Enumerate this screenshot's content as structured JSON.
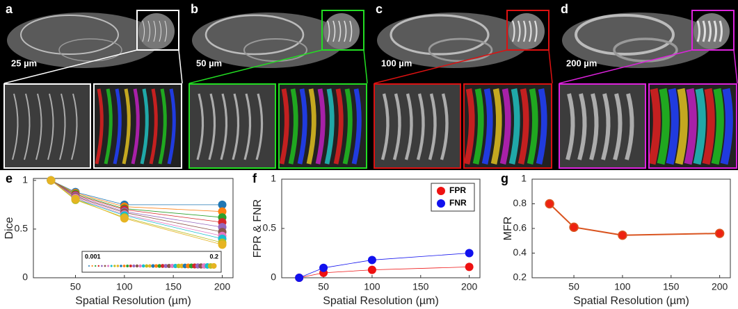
{
  "panels": [
    {
      "label": "a",
      "resolution": "25 µm",
      "border": "#ffffff"
    },
    {
      "label": "b",
      "resolution": "50 µm",
      "border": "#22dd22"
    },
    {
      "label": "c",
      "resolution": "100 µm",
      "border": "#dd1111"
    },
    {
      "label": "d",
      "resolution": "200 µm",
      "border": "#dd22dd"
    }
  ],
  "chart_data": [
    {
      "type": "line",
      "label": "e",
      "ylabel": "Dice",
      "xlabel": "Spatial Resolution (µm)",
      "x": [
        25,
        50,
        100,
        200
      ],
      "xlim": [
        7,
        211
      ],
      "xticks": [
        50,
        100,
        150,
        200
      ],
      "ylim": [
        0,
        1.02
      ],
      "yticks": [
        0,
        0.5,
        1
      ],
      "colorbar_labels": [
        "0.001",
        "0.2"
      ],
      "series": [
        {
          "color": "#1f77b4",
          "values": [
            1,
            0.88,
            0.75,
            0.75
          ]
        },
        {
          "color": "#ff7f0e",
          "values": [
            1,
            0.87,
            0.73,
            0.68
          ]
        },
        {
          "color": "#2ca02c",
          "values": [
            1,
            0.86,
            0.71,
            0.62
          ]
        },
        {
          "color": "#d62728",
          "values": [
            1,
            0.85,
            0.7,
            0.57
          ]
        },
        {
          "color": "#9467bd",
          "values": [
            1,
            0.84,
            0.68,
            0.52
          ]
        },
        {
          "color": "#8c564b",
          "values": [
            1,
            0.83,
            0.67,
            0.47
          ]
        },
        {
          "color": "#e377c2",
          "values": [
            1,
            0.82,
            0.65,
            0.43
          ]
        },
        {
          "color": "#17becf",
          "values": [
            1,
            0.81,
            0.64,
            0.4
          ]
        },
        {
          "color": "#bcbd22",
          "values": [
            1,
            0.8,
            0.62,
            0.36
          ]
        },
        {
          "color": "#e6b422",
          "values": [
            1,
            0.81,
            0.61,
            0.34
          ]
        }
      ]
    },
    {
      "type": "line",
      "label": "f",
      "ylabel": "FPR & FNR",
      "xlabel": "Spatial Resolution (µm)",
      "x": [
        25,
        50,
        100,
        200
      ],
      "xlim": [
        7,
        211
      ],
      "xticks": [
        50,
        100,
        150,
        200
      ],
      "ylim": [
        0,
        1
      ],
      "yticks": [
        0,
        0.5,
        1
      ],
      "legend": "top-right",
      "series": [
        {
          "name": "FPR",
          "color": "#ee1111",
          "values": [
            0,
            0.05,
            0.08,
            0.11
          ]
        },
        {
          "name": "FNR",
          "color": "#1111ee",
          "values": [
            0,
            0.1,
            0.18,
            0.25
          ]
        }
      ]
    },
    {
      "type": "line",
      "label": "g",
      "ylabel": "MFR",
      "xlabel": "Spatial Resolution (µm)",
      "x": [
        25,
        50,
        100,
        200
      ],
      "xlim": [
        7,
        211
      ],
      "xticks": [
        50,
        100,
        150,
        200
      ],
      "ylim": [
        0.2,
        1
      ],
      "yticks": [
        0.2,
        0.4,
        0.6,
        0.8,
        1
      ],
      "series": [
        {
          "color": "#d9531e",
          "marker": "#ee2211",
          "values": [
            0.8,
            0.61,
            0.545,
            0.56
          ]
        }
      ]
    }
  ]
}
